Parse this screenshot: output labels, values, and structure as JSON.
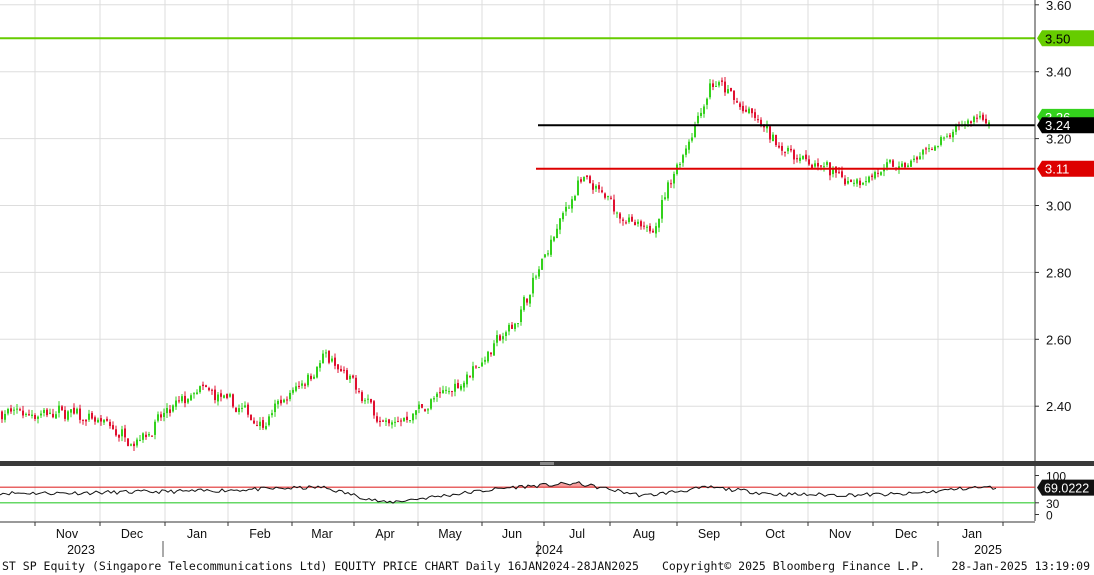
{
  "chart_data": [
    {
      "type": "candlestick",
      "title": "ST SP Equity (Singapore Telecommunications Ltd) EQUITY PRICE CHART",
      "ylim": [
        2.2,
        3.62
      ],
      "y_ticks": [
        "3.60",
        "3.40",
        "3.20",
        "3.00",
        "2.80",
        "2.60",
        "2.40"
      ],
      "x_month_labels": [
        "Nov",
        "Dec",
        "Jan",
        "Feb",
        "Mar",
        "Apr",
        "May",
        "Jun",
        "Jul",
        "Aug",
        "Sep",
        "Oct",
        "Nov",
        "Dec",
        "Jan"
      ],
      "x_year_labels": [
        "2023",
        "2024",
        "2025"
      ],
      "colors": {
        "up": "#33d11c",
        "down": "#e01030",
        "background": "#ffffff",
        "grid": "#dddddd"
      },
      "grid": true,
      "approx_price_path": [
        {
          "month": "Nov 2023",
          "price": 2.38
        },
        {
          "month": "Dec 2023",
          "price": 2.3
        },
        {
          "month": "Jan 2024",
          "price": 2.45
        },
        {
          "month": "Feb 2024",
          "price": 2.35
        },
        {
          "month": "Mar 2024",
          "price": 2.55
        },
        {
          "month": "Apr 2024",
          "price": 2.34
        },
        {
          "month": "May 2024",
          "price": 2.45
        },
        {
          "month": "Jun 2024",
          "price": 2.65
        },
        {
          "month": "Jul 2024",
          "price": 3.08
        },
        {
          "month": "Aug 2024",
          "price": 2.9
        },
        {
          "month": "Sep 2024",
          "price": 3.38
        },
        {
          "month": "Oct 2024",
          "price": 3.18
        },
        {
          "month": "Nov 2024",
          "price": 3.08
        },
        {
          "month": "Dec 2024",
          "price": 3.12
        },
        {
          "month": "Jan 2025",
          "price": 3.26
        }
      ],
      "reference_lines": [
        {
          "value": 3.5,
          "label": "3.50",
          "color": "#66cc00"
        },
        {
          "value": 3.24,
          "label": "3.24",
          "color": "#000000"
        },
        {
          "value": 3.11,
          "label": "3.11",
          "color": "#dd0000"
        }
      ],
      "last_price_tag": {
        "label": "3.26",
        "color": "#33d11c"
      }
    },
    {
      "type": "line",
      "ylim": [
        0,
        100
      ],
      "y_ticks": [
        "100",
        "30",
        "0"
      ],
      "overbought": 70,
      "oversold": 30,
      "last_value_label": "69.0222",
      "approx_path": [
        {
          "month": "Nov 2023",
          "value": 55
        },
        {
          "month": "Jan 2024",
          "value": 60
        },
        {
          "month": "Mar 2024",
          "value": 70
        },
        {
          "month": "Apr 2024",
          "value": 30
        },
        {
          "month": "Jun 2024",
          "value": 70
        },
        {
          "month": "Jul 2024",
          "value": 80
        },
        {
          "month": "Aug 2024",
          "value": 48
        },
        {
          "month": "Sep 2024",
          "value": 70
        },
        {
          "month": "Oct 2024",
          "value": 52
        },
        {
          "month": "Nov 2024",
          "value": 50
        },
        {
          "month": "Dec 2024",
          "value": 52
        },
        {
          "month": "Jan 2025",
          "value": 69
        }
      ]
    }
  ],
  "footer": {
    "left": "ST SP Equity (Singapore Telecommunications Ltd) EQUITY PRICE CHART  Daily 16JAN2024-28JAN2025",
    "copyright": "Copyright© 2025 Bloomberg Finance L.P.",
    "timestamp": "28-Jan-2025 13:19:09"
  }
}
